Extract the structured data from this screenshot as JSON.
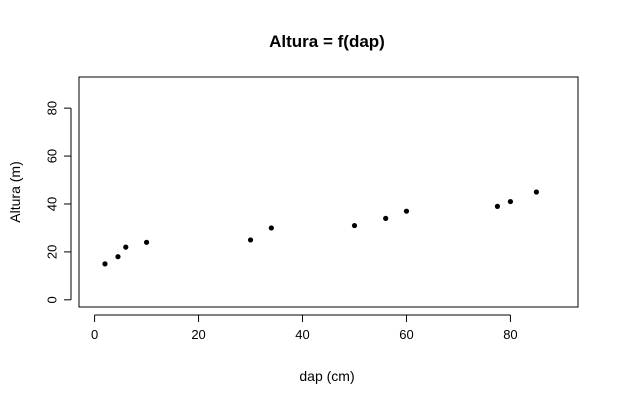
{
  "chart_data": {
    "type": "scatter",
    "title": "Altura = f(dap)",
    "xlabel": "dap (cm)",
    "ylabel": "Altura (m)",
    "xlim": [
      -3,
      93
    ],
    "ylim": [
      -3,
      93
    ],
    "x_ticks": [
      0,
      20,
      40,
      60,
      80
    ],
    "y_ticks": [
      0,
      20,
      40,
      60,
      80
    ],
    "grid": false,
    "legend": "none",
    "point_color": "#000000",
    "points": [
      {
        "x": 2,
        "y": 15
      },
      {
        "x": 4.5,
        "y": 18
      },
      {
        "x": 6,
        "y": 22
      },
      {
        "x": 10,
        "y": 24
      },
      {
        "x": 30,
        "y": 25
      },
      {
        "x": 34,
        "y": 30
      },
      {
        "x": 50,
        "y": 31
      },
      {
        "x": 56,
        "y": 34
      },
      {
        "x": 60,
        "y": 37
      },
      {
        "x": 77.5,
        "y": 39
      },
      {
        "x": 80,
        "y": 41
      },
      {
        "x": 85,
        "y": 45
      }
    ]
  }
}
